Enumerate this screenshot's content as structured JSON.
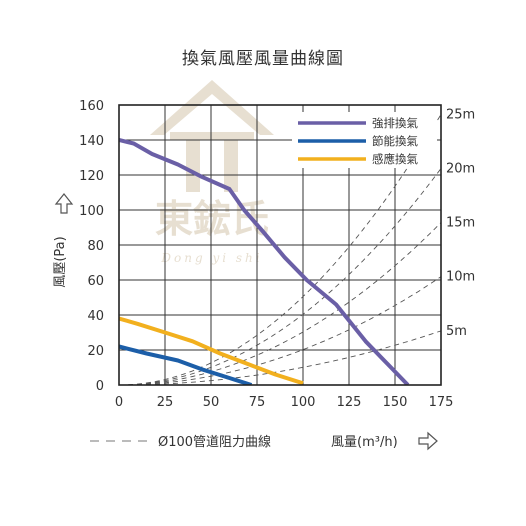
{
  "chart_data": {
    "type": "line",
    "title": "換氣風壓風量曲線圖",
    "xlabel": "風量(m³/h)",
    "ylabel": "風壓(Pa)",
    "xlim": [
      0,
      175
    ],
    "ylim": [
      0,
      160
    ],
    "xticks": [
      "0",
      "25",
      "50",
      "75",
      "100",
      "125",
      "150",
      "175"
    ],
    "yticks": [
      "0",
      "20",
      "40",
      "60",
      "80",
      "100",
      "120",
      "140",
      "160"
    ],
    "grid": true,
    "legend_position": "top-right",
    "series": [
      {
        "name": "強排換氣",
        "color": "#6a5fa6",
        "points": [
          [
            0,
            140
          ],
          [
            8,
            138
          ],
          [
            18,
            132
          ],
          [
            32,
            126
          ],
          [
            45,
            119
          ],
          [
            60,
            112
          ],
          [
            68,
            100
          ],
          [
            78,
            88
          ],
          [
            90,
            73
          ],
          [
            102,
            60
          ],
          [
            118,
            46
          ],
          [
            134,
            25
          ],
          [
            146,
            12
          ],
          [
            157,
            0
          ]
        ]
      },
      {
        "name": "節能換氣",
        "color": "#1c5ea8",
        "points": [
          [
            0,
            22
          ],
          [
            15,
            18
          ],
          [
            32,
            14
          ],
          [
            45,
            9
          ],
          [
            60,
            4
          ],
          [
            72,
            0
          ]
        ]
      },
      {
        "name": "感應換氣",
        "color": "#f2b01e",
        "points": [
          [
            0,
            38
          ],
          [
            10,
            35
          ],
          [
            25,
            30
          ],
          [
            40,
            25
          ],
          [
            55,
            18
          ],
          [
            70,
            12
          ],
          [
            85,
            6
          ],
          [
            100,
            1
          ]
        ]
      }
    ],
    "resistance_curves": [
      {
        "label": "25m",
        "k": 0.00505
      },
      {
        "label": "20m",
        "k": 0.00404
      },
      {
        "label": "15m",
        "k": 0.00303
      },
      {
        "label": "10m",
        "k": 0.00202
      },
      {
        "label": "5m",
        "k": 0.00101
      }
    ],
    "resistance_legend": "Ø100管道阻力曲線"
  },
  "watermark": {
    "name_cn": "東鋐氏",
    "name_en": "Dong yi shi",
    "color": "#e7dfd1"
  },
  "icons": {
    "y_arrow": "up-outline-arrow-icon",
    "x_arrow": "right-outline-arrow-icon"
  }
}
